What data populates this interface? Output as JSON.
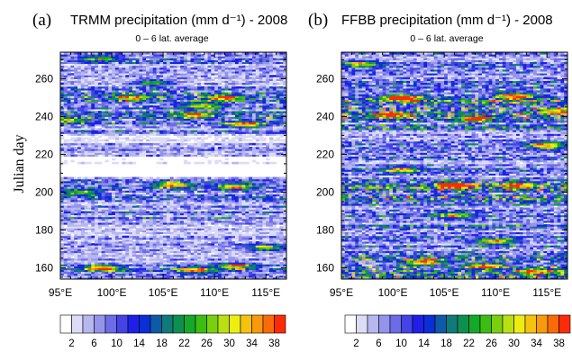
{
  "figure": {
    "ylabel": "Julian day",
    "degree_symbol": "°"
  },
  "chart_data": [
    {
      "type": "heatmap",
      "panel_label": "(a)",
      "title": "TRMM precipitation (mm d⁻¹) - 2008",
      "subtitle": "0 – 6 lat. average",
      "ylabel": "Julian day",
      "xlabel": "",
      "x_ticks": [
        "95°E",
        "100°E",
        "105°E",
        "110°E",
        "115°E"
      ],
      "x_tick_values": [
        95,
        100,
        105,
        110,
        115
      ],
      "xlim": [
        95,
        117
      ],
      "y_ticks": [
        160,
        180,
        200,
        220,
        240,
        260
      ],
      "ylim": [
        154,
        274
      ],
      "z_unit": "mm d⁻¹",
      "colorbar": {
        "levels": [
          2,
          4,
          6,
          8,
          10,
          12,
          14,
          16,
          18,
          20,
          22,
          24,
          26,
          28,
          30,
          32,
          34,
          36,
          38
        ],
        "labels": [
          "2",
          "6",
          "10",
          "14",
          "18",
          "22",
          "26",
          "30",
          "34",
          "38"
        ]
      },
      "seed": 11,
      "row_intensity": [
        [
          154,
          159,
          0.55
        ],
        [
          159,
          163,
          0.45
        ],
        [
          163,
          171,
          0.3
        ],
        [
          171,
          174,
          0.35
        ],
        [
          174,
          181,
          0.3
        ],
        [
          181,
          186,
          0.25
        ],
        [
          186,
          192,
          0.45
        ],
        [
          192,
          196,
          0.35
        ],
        [
          196,
          202,
          0.45
        ],
        [
          202,
          208,
          0.55
        ],
        [
          208,
          211,
          0.05
        ],
        [
          211,
          215,
          0.02
        ],
        [
          215,
          219,
          0.1
        ],
        [
          219,
          226,
          0.35
        ],
        [
          226,
          230,
          0.15
        ],
        [
          230,
          236,
          0.4
        ],
        [
          236,
          245,
          0.55
        ],
        [
          245,
          256,
          0.55
        ],
        [
          256,
          263,
          0.3
        ],
        [
          263,
          268,
          0.3
        ],
        [
          268,
          274,
          0.45
        ]
      ],
      "hotspots": [
        [
          99,
          160,
          34
        ],
        [
          108,
          159,
          30
        ],
        [
          112,
          161,
          28
        ],
        [
          106,
          204,
          30
        ],
        [
          112,
          203,
          26
        ],
        [
          97,
          200,
          22
        ],
        [
          108,
          241,
          28
        ],
        [
          113,
          236,
          32
        ],
        [
          111,
          250,
          30
        ],
        [
          102,
          250,
          24
        ],
        [
          115,
          171,
          24
        ],
        [
          99,
          271,
          18
        ],
        [
          104,
          258,
          20
        ],
        [
          109,
          246,
          24
        ],
        [
          96,
          238,
          20
        ]
      ]
    },
    {
      "type": "heatmap",
      "panel_label": "(b)",
      "title": "FFBB precipitation (mm d⁻¹) - 2008",
      "subtitle": "0 – 6 lat. average",
      "ylabel": "",
      "xlabel": "",
      "x_ticks": [
        "95°E",
        "100°E",
        "105°E",
        "110°E",
        "115°E"
      ],
      "x_tick_values": [
        95,
        100,
        105,
        110,
        115
      ],
      "xlim": [
        95,
        117
      ],
      "y_ticks": [
        160,
        180,
        200,
        220,
        240,
        260
      ],
      "ylim": [
        154,
        274
      ],
      "z_unit": "mm d⁻¹",
      "colorbar": {
        "levels": [
          2,
          4,
          6,
          8,
          10,
          12,
          14,
          16,
          18,
          20,
          22,
          24,
          26,
          28,
          30,
          32,
          34,
          36,
          38
        ],
        "labels": [
          "2",
          "6",
          "10",
          "14",
          "18",
          "22",
          "26",
          "30",
          "34",
          "38"
        ]
      },
      "seed": 29,
      "row_intensity": [
        [
          154,
          159,
          0.7
        ],
        [
          159,
          166,
          0.65
        ],
        [
          166,
          172,
          0.55
        ],
        [
          172,
          178,
          0.45
        ],
        [
          178,
          184,
          0.5
        ],
        [
          184,
          190,
          0.45
        ],
        [
          190,
          196,
          0.55
        ],
        [
          196,
          203,
          0.7
        ],
        [
          203,
          208,
          0.75
        ],
        [
          208,
          214,
          0.45
        ],
        [
          214,
          220,
          0.4
        ],
        [
          220,
          226,
          0.45
        ],
        [
          226,
          232,
          0.4
        ],
        [
          232,
          238,
          0.55
        ],
        [
          238,
          245,
          0.7
        ],
        [
          245,
          252,
          0.75
        ],
        [
          252,
          258,
          0.5
        ],
        [
          258,
          265,
          0.45
        ],
        [
          265,
          274,
          0.5
        ]
      ],
      "hotspots": [
        [
          101,
          250,
          38
        ],
        [
          100,
          241,
          34
        ],
        [
          112,
          251,
          34
        ],
        [
          108,
          239,
          30
        ],
        [
          106,
          204,
          36
        ],
        [
          112,
          204,
          30
        ],
        [
          103,
          163,
          32
        ],
        [
          109,
          161,
          30
        ],
        [
          114,
          158,
          28
        ],
        [
          115,
          225,
          30
        ],
        [
          97,
          268,
          24
        ],
        [
          106,
          188,
          24
        ],
        [
          110,
          174,
          26
        ],
        [
          101,
          212,
          22
        ],
        [
          116,
          243,
          26
        ]
      ]
    }
  ]
}
